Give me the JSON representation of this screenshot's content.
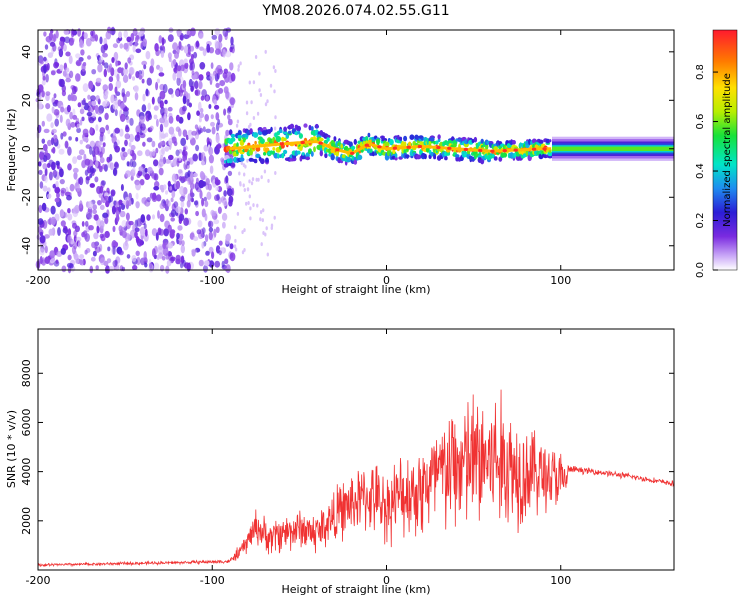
{
  "title": "YM08.2026.074.02.55.G11",
  "chart_data": [
    {
      "type": "heatmap",
      "name": "spectrogram",
      "xlabel": "Height of straight line (km)",
      "ylabel": "Frequency (Hz)",
      "xlim": [
        -200,
        165
      ],
      "ylim": [
        -50,
        49
      ],
      "xticks": [
        -200,
        -100,
        0,
        100
      ],
      "yticks": [
        -40,
        -20,
        0,
        20,
        40
      ],
      "colorbar": {
        "label": "Normalized spectral amplitude",
        "range": [
          0,
          0.97
        ],
        "ticks": [
          0.0,
          0.2,
          0.4,
          0.6,
          0.8
        ]
      },
      "regions": [
        {
          "x_range": [
            -200,
            -88
          ],
          "f_range": [
            -50,
            49
          ],
          "amplitude": 0.12,
          "kind": "noise"
        },
        {
          "x_range": [
            -92,
            95
          ],
          "f_range": [
            -6,
            6
          ],
          "amplitude": 0.35,
          "kind": "signal-band"
        },
        {
          "x_range": [
            -92,
            95
          ],
          "f_range": [
            -2,
            2
          ],
          "amplitude": 0.8,
          "kind": "carrier"
        },
        {
          "x_range": [
            95,
            165
          ],
          "f_range": [
            -2,
            2
          ],
          "amplitude": 0.6,
          "kind": "carrier"
        }
      ],
      "carrier_offset": [
        {
          "x": -90,
          "f": 0
        },
        {
          "x": -60,
          "f": 2
        },
        {
          "x": -40,
          "f": 3
        },
        {
          "x": -30,
          "f": 0
        },
        {
          "x": -20,
          "f": -2
        },
        {
          "x": -10,
          "f": 2
        },
        {
          "x": 0,
          "f": 0
        },
        {
          "x": 20,
          "f": 1
        },
        {
          "x": 40,
          "f": 0
        },
        {
          "x": 60,
          "f": -1
        },
        {
          "x": 90,
          "f": 0
        },
        {
          "x": 165,
          "f": 0
        }
      ]
    },
    {
      "type": "line",
      "name": "snr",
      "xlabel": "Height of straight line (km)",
      "ylabel": "SNR (10 * v/v)",
      "xlim": [
        -200,
        165
      ],
      "ylim": [
        0,
        9800
      ],
      "xticks": [
        -200,
        -100,
        0,
        100
      ],
      "yticks": [
        2000,
        4000,
        6000,
        8000
      ],
      "color": "#f03232",
      "series": [
        {
          "name": "SNR",
          "x": [
            -200,
            -160,
            -120,
            -90,
            -82,
            -75,
            -68,
            -60,
            -50,
            -40,
            -30,
            -20,
            -10,
            0,
            10,
            20,
            30,
            40,
            50,
            60,
            68,
            75,
            85,
            95,
            102,
            105,
            120,
            140,
            165
          ],
          "y": [
            200,
            250,
            300,
            350,
            900,
            1800,
            1300,
            1500,
            1700,
            1500,
            2200,
            2700,
            3000,
            2600,
            3100,
            3300,
            3800,
            4200,
            4400,
            4500,
            4300,
            4100,
            4000,
            3800,
            3500,
            4100,
            4000,
            3800,
            3500
          ],
          "spread": [
            60,
            60,
            60,
            80,
            400,
            700,
            700,
            800,
            800,
            900,
            1100,
            1300,
            1400,
            1500,
            1700,
            2000,
            2400,
            2700,
            2900,
            3000,
            2800,
            2500,
            1800,
            1400,
            1200,
            150,
            120,
            120,
            110
          ]
        }
      ]
    }
  ]
}
